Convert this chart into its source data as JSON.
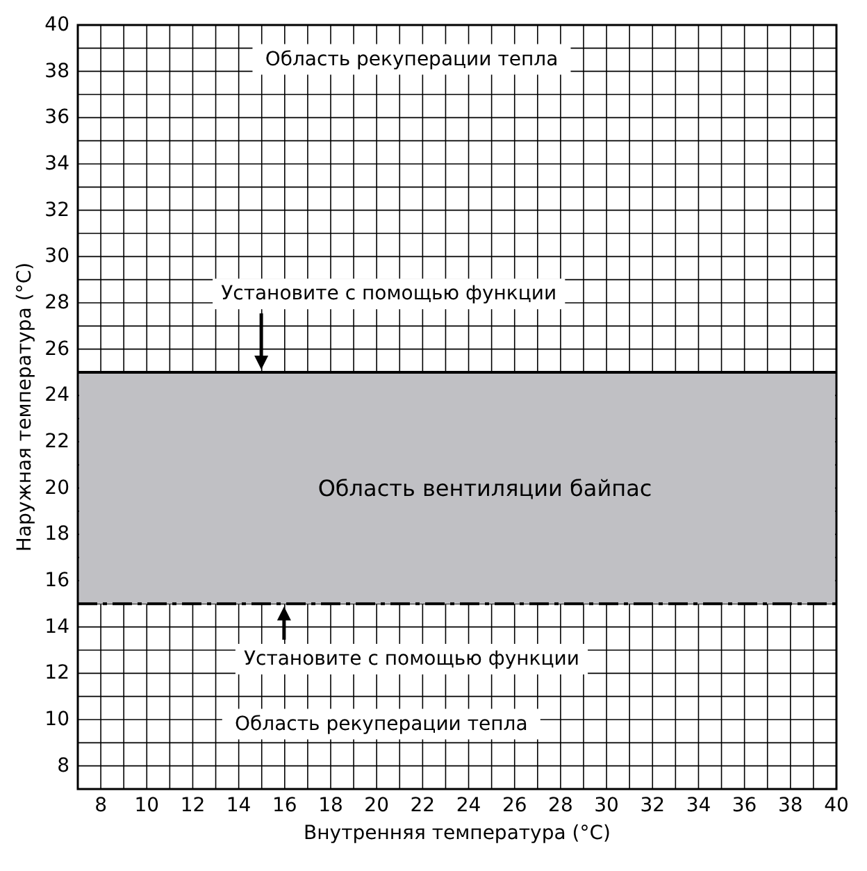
{
  "chart_data": {
    "type": "line",
    "xlabel": "Внутренняя температура (°C)",
    "ylabel": "Наружная температура (°C)",
    "xlim": [
      7,
      40
    ],
    "ylim": [
      7,
      40
    ],
    "xticks": [
      {
        "value": 7,
        "label": null
      },
      8,
      {
        "value": 9,
        "label": null
      },
      10,
      {
        "value": 11,
        "label": null
      },
      12,
      {
        "value": 13,
        "label": null
      },
      14,
      {
        "value": 15,
        "label": null
      },
      16,
      {
        "value": 17,
        "label": null
      },
      18,
      {
        "value": 19,
        "label": null
      },
      20,
      {
        "value": 21,
        "label": null
      },
      22,
      {
        "value": 23,
        "label": null
      },
      24,
      {
        "value": 25,
        "label": null
      },
      26,
      {
        "value": 27,
        "label": null
      },
      28,
      {
        "value": 29,
        "label": null
      },
      30,
      {
        "value": 31,
        "label": null
      },
      32,
      {
        "value": 33,
        "label": null
      },
      34,
      {
        "value": 35,
        "label": null
      },
      36,
      {
        "value": 37,
        "label": null
      },
      38,
      {
        "value": 39,
        "label": null
      },
      40
    ],
    "yticks": [
      {
        "value": 7,
        "label": null
      },
      8,
      {
        "value": 9,
        "label": null
      },
      10,
      {
        "value": 11,
        "label": null
      },
      12,
      {
        "value": 13,
        "label": null
      },
      14,
      {
        "value": 15,
        "label": null
      },
      16,
      {
        "value": 17,
        "label": null
      },
      18,
      {
        "value": 19,
        "label": null
      },
      20,
      {
        "value": 21,
        "label": null
      },
      22,
      {
        "value": 23,
        "label": null
      },
      24,
      {
        "value": 25,
        "label": null
      },
      26,
      {
        "value": 27,
        "label": null
      },
      28,
      {
        "value": 29,
        "label": null
      },
      30,
      {
        "value": 31,
        "label": null
      },
      32,
      {
        "value": 33,
        "label": null
      },
      34,
      {
        "value": 35,
        "label": null
      },
      36,
      {
        "value": 37,
        "label": null
      },
      38,
      {
        "value": 39,
        "label": null
      },
      40
    ],
    "grid": true,
    "bands": [
      {
        "axis": "y",
        "from": 15,
        "to": 25,
        "label": "Область вентиляции байпас",
        "color": "#c0c0c4"
      }
    ],
    "ref_lines": [
      {
        "axis": "y",
        "value": 25,
        "line_style": "solid",
        "color": "#000000"
      },
      {
        "axis": "y",
        "value": 15,
        "line_style": "dashed",
        "color": "#000000"
      }
    ],
    "annotations": [
      "Область рекуперации тепла",
      "Установите с помощью функции",
      "Установите с помощью функции",
      "Область рекуперации тепла"
    ]
  }
}
